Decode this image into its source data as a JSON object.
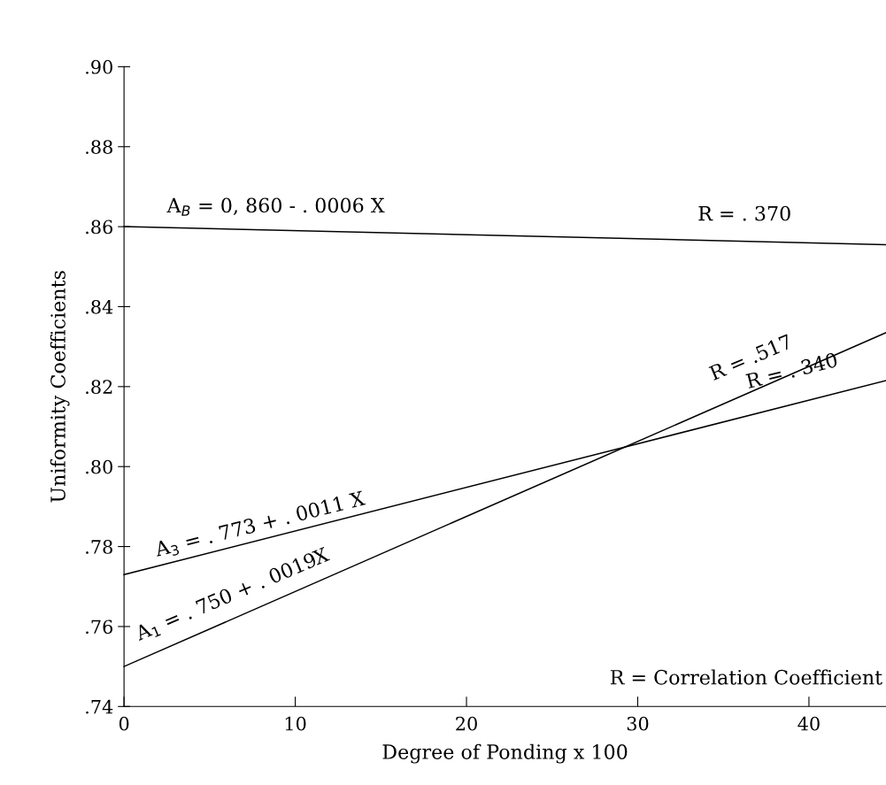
{
  "chart_data": {
    "type": "line",
    "xlabel": "Degree of Ponding x 100",
    "ylabel": "Uniformity Coefficients",
    "xlim": [
      0,
      44.5
    ],
    "xticks": [
      0,
      10,
      20,
      30,
      40
    ],
    "ylim": [
      0.74,
      0.9
    ],
    "yticks": [
      {
        "value": 0.74,
        "label": ".74"
      },
      {
        "value": 0.76,
        "label": ".76"
      },
      {
        "value": 0.78,
        "label": ".78"
      },
      {
        "value": 0.8,
        "label": ".80"
      },
      {
        "value": 0.82,
        "label": ".82"
      },
      {
        "value": 0.84,
        "label": ".84"
      },
      {
        "value": 0.86,
        "label": ".86"
      },
      {
        "value": 0.88,
        "label": ".88"
      },
      {
        "value": 0.9,
        "label": ".90"
      }
    ],
    "x": [
      0,
      44.5
    ],
    "grid": false,
    "legend": false,
    "marker": "none",
    "line_style": "solid",
    "series": [
      {
        "color": "#000000",
        "values": [
          0.86,
          0.8555
        ]
      },
      {
        "color": "#000000",
        "values": [
          0.773,
          0.8215
        ]
      },
      {
        "color": "#000000",
        "values": [
          0.75,
          0.8335
        ]
      }
    ],
    "annotations": [
      "A$_{B}$ = 0, 860 - . 0006 X",
      "R = . 370",
      "A$_{3}$ = . 773 + . 0011 X",
      "A$_{1}$ = . 750 + . 0019X",
      "R = .517",
      "R = . 340",
      "R = Correlation Coefficient"
    ]
  }
}
